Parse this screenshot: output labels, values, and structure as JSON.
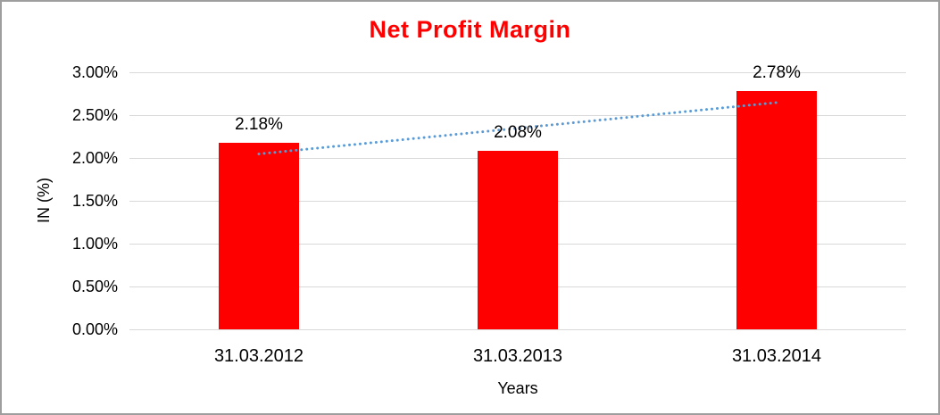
{
  "chart_data": {
    "type": "bar",
    "title": "Net Profit Margin",
    "title_color": "#FF0000",
    "categories": [
      "31.03.2012",
      "31.03.2013",
      "31.03.2014"
    ],
    "values": [
      2.18,
      2.08,
      2.78
    ],
    "data_labels": [
      "2.18%",
      "2.08%",
      "2.78%"
    ],
    "bar_color": "#FF0000",
    "xlabel": "Years",
    "ylabel": "IN (%)",
    "ylim": [
      0,
      3
    ],
    "ytick_labels": [
      "0.00%",
      "0.50%",
      "1.00%",
      "1.50%",
      "2.00%",
      "2.50%",
      "3.00%"
    ],
    "grid": true,
    "gridline_color": "#D9D9D9",
    "legend": "none",
    "trendline": {
      "type": "linear",
      "style": "dotted",
      "color": "#5B9BD5",
      "start_value": 2.047,
      "end_value": 2.647
    }
  }
}
